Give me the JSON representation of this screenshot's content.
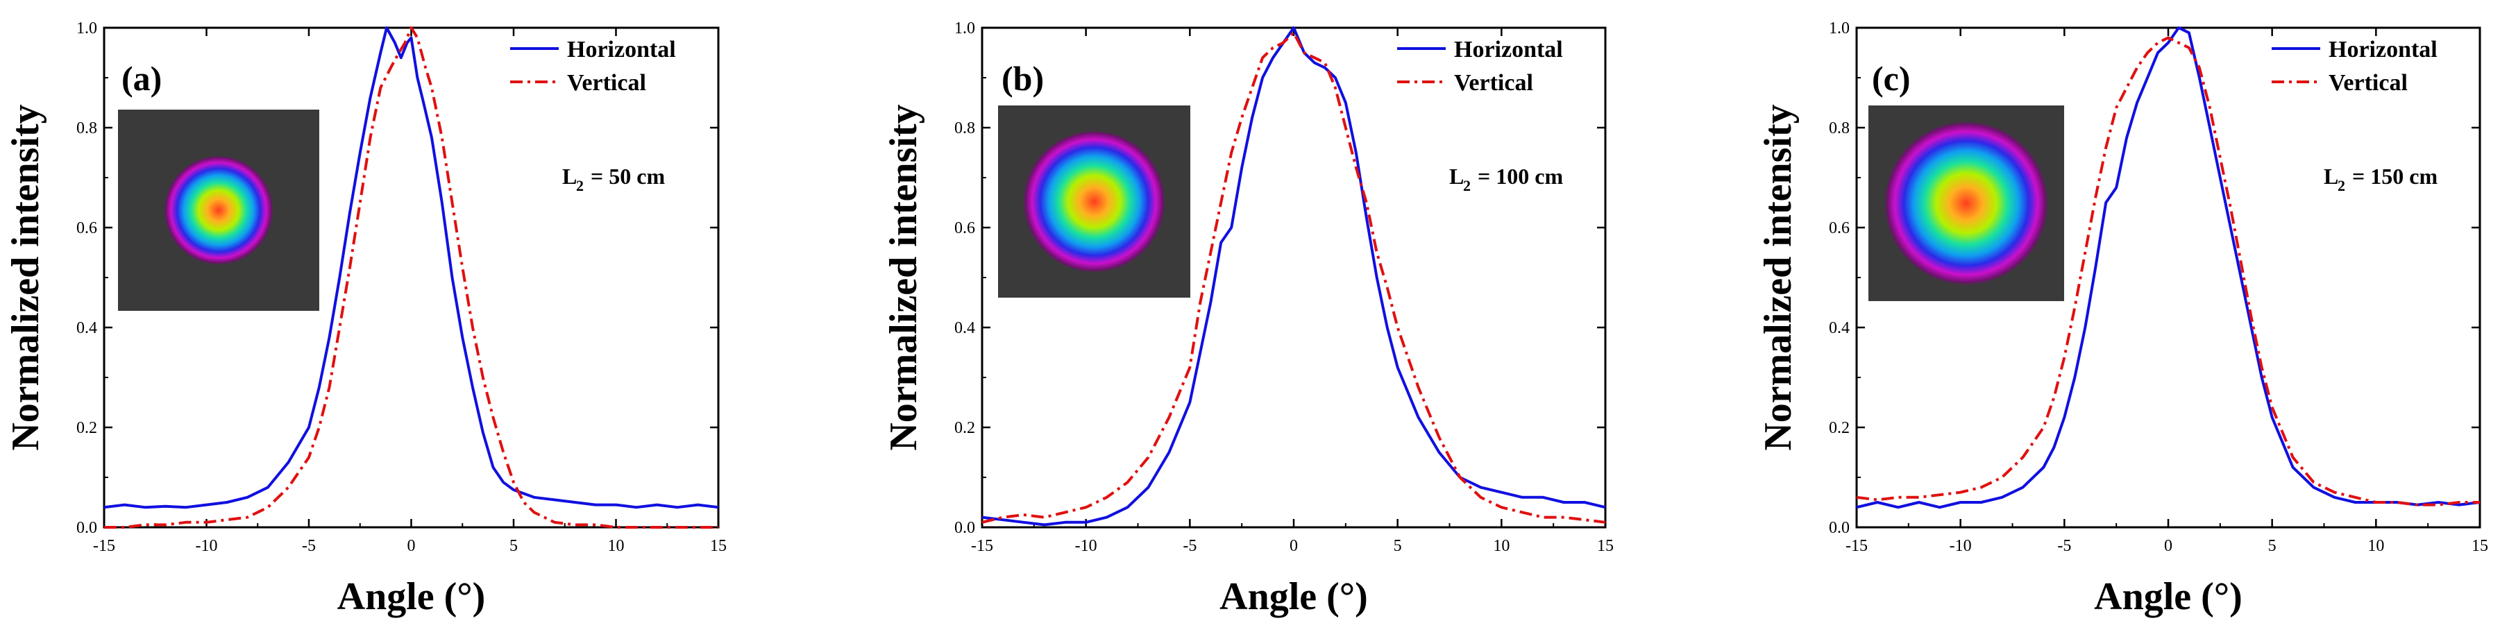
{
  "figure": {
    "panel_count": 3,
    "colors": {
      "horizontal": "#1010e0",
      "vertical": "#e01010",
      "axis": "#000000",
      "inset_background": "#3a3a3a"
    }
  },
  "chart_data": [
    {
      "type": "line",
      "panel_label": "(a)",
      "xlabel": "Angle (°)",
      "ylabel": "Normalized intensity",
      "xlim": [
        -15,
        15
      ],
      "ylim": [
        0,
        1.0
      ],
      "xticks": [
        -15,
        -10,
        -5,
        0,
        5,
        10,
        15
      ],
      "xtick_labels": [
        "-15",
        "-10",
        "-5",
        "0",
        "5",
        "10",
        "15"
      ],
      "yticks": [
        0,
        0.2,
        0.4,
        0.6,
        0.8,
        1.0
      ],
      "ytick_labels": [
        "0.0",
        "0.2",
        "0.4",
        "0.6",
        "0.8",
        "1.0"
      ],
      "legend_position": "top-right",
      "parameter_main": "L",
      "parameter_sub": "2",
      "parameter_value": " = 50 cm",
      "inset": {
        "spot_size": 0.55
      },
      "series": [
        {
          "name": "Horizontal",
          "style": "solid",
          "color": "#1010e0",
          "x": [
            -15,
            -14,
            -13,
            -12,
            -11,
            -10,
            -9,
            -8,
            -7,
            -6,
            -5,
            -4.5,
            -4,
            -3.5,
            -3,
            -2.5,
            -2,
            -1.5,
            -1.2,
            -0.8,
            -0.5,
            -0.2,
            0,
            0.3,
            0.6,
            1,
            1.5,
            2,
            2.5,
            3,
            3.5,
            4,
            4.5,
            5,
            6,
            7,
            8,
            9,
            10,
            11,
            12,
            13,
            14,
            15
          ],
          "y": [
            0.04,
            0.045,
            0.04,
            0.042,
            0.04,
            0.045,
            0.05,
            0.06,
            0.08,
            0.13,
            0.2,
            0.28,
            0.38,
            0.5,
            0.63,
            0.75,
            0.86,
            0.95,
            1.0,
            0.97,
            0.94,
            0.97,
            0.98,
            0.9,
            0.85,
            0.78,
            0.65,
            0.5,
            0.38,
            0.28,
            0.19,
            0.12,
            0.09,
            0.075,
            0.06,
            0.055,
            0.05,
            0.045,
            0.045,
            0.04,
            0.045,
            0.04,
            0.045,
            0.04
          ]
        },
        {
          "name": "Vertical",
          "style": "dashdot",
          "color": "#e01010",
          "x": [
            -15,
            -14,
            -13,
            -12,
            -11,
            -10,
            -9,
            -8,
            -7,
            -6,
            -5,
            -4.5,
            -4,
            -3.5,
            -3,
            -2.5,
            -2,
            -1.5,
            -1,
            -0.6,
            -0.3,
            0,
            0.3,
            0.7,
            1,
            1.5,
            2,
            2.5,
            3,
            3.5,
            4,
            4.5,
            5,
            5.5,
            6,
            7,
            8,
            9,
            10,
            11,
            12,
            13,
            14,
            15
          ],
          "y": [
            0.0,
            0.0,
            0.005,
            0.005,
            0.01,
            0.01,
            0.015,
            0.02,
            0.04,
            0.08,
            0.14,
            0.2,
            0.28,
            0.4,
            0.52,
            0.65,
            0.78,
            0.88,
            0.92,
            0.95,
            0.97,
            1.0,
            0.98,
            0.92,
            0.88,
            0.78,
            0.65,
            0.52,
            0.4,
            0.3,
            0.22,
            0.15,
            0.09,
            0.05,
            0.03,
            0.01,
            0.005,
            0.005,
            0.0,
            0.0,
            0.0,
            0.0,
            0.0,
            0.0
          ]
        }
      ]
    },
    {
      "type": "line",
      "panel_label": "(b)",
      "xlabel": "Angle (°)",
      "ylabel": "Normalized intensity",
      "xlim": [
        -15,
        15
      ],
      "ylim": [
        0,
        1.0
      ],
      "xticks": [
        -15,
        -10,
        -5,
        0,
        5,
        10,
        15
      ],
      "xtick_labels": [
        "-15",
        "-10",
        "-5",
        "0",
        "5",
        "10",
        "15"
      ],
      "yticks": [
        0,
        0.2,
        0.4,
        0.6,
        0.8,
        1.0
      ],
      "ytick_labels": [
        "0.0",
        "0.2",
        "0.4",
        "0.6",
        "0.8",
        "1.0"
      ],
      "legend_position": "top-right",
      "parameter_main": "L",
      "parameter_sub": "2",
      "parameter_value": " = 100 cm",
      "inset": {
        "spot_size": 0.75
      },
      "series": [
        {
          "name": "Horizontal",
          "style": "solid",
          "color": "#1010e0",
          "x": [
            -15,
            -14,
            -13,
            -12,
            -11,
            -10,
            -9,
            -8,
            -7,
            -6,
            -5,
            -4.5,
            -4,
            -3.5,
            -3,
            -2.5,
            -2,
            -1.5,
            -1,
            -0.5,
            0,
            0.5,
            1,
            1.5,
            2,
            2.5,
            3,
            3.5,
            4,
            4.5,
            5,
            6,
            7,
            8,
            9,
            10,
            11,
            12,
            13,
            14,
            15
          ],
          "y": [
            0.02,
            0.015,
            0.01,
            0.005,
            0.01,
            0.01,
            0.02,
            0.04,
            0.08,
            0.15,
            0.25,
            0.35,
            0.45,
            0.57,
            0.6,
            0.72,
            0.82,
            0.9,
            0.94,
            0.97,
            1.0,
            0.95,
            0.93,
            0.92,
            0.9,
            0.85,
            0.75,
            0.62,
            0.5,
            0.4,
            0.32,
            0.22,
            0.15,
            0.1,
            0.08,
            0.07,
            0.06,
            0.06,
            0.05,
            0.05,
            0.04
          ]
        },
        {
          "name": "Vertical",
          "style": "dashdot",
          "color": "#e01010",
          "x": [
            -15,
            -14,
            -13,
            -12,
            -11,
            -10,
            -9,
            -8,
            -7,
            -6,
            -5,
            -4.5,
            -4,
            -3.5,
            -3,
            -2.5,
            -2,
            -1.5,
            -1,
            -0.5,
            0,
            0.5,
            1,
            1.5,
            2,
            2.5,
            3,
            3.5,
            4,
            4.5,
            5,
            6,
            7,
            8,
            9,
            10,
            11,
            12,
            13,
            14,
            15
          ],
          "y": [
            0.01,
            0.02,
            0.025,
            0.02,
            0.03,
            0.04,
            0.06,
            0.09,
            0.14,
            0.22,
            0.32,
            0.45,
            0.55,
            0.65,
            0.75,
            0.82,
            0.88,
            0.94,
            0.96,
            0.97,
            0.99,
            0.95,
            0.94,
            0.93,
            0.88,
            0.8,
            0.72,
            0.65,
            0.55,
            0.48,
            0.4,
            0.28,
            0.18,
            0.1,
            0.06,
            0.04,
            0.03,
            0.02,
            0.02,
            0.015,
            0.01
          ]
        }
      ]
    },
    {
      "type": "line",
      "panel_label": "(c)",
      "xlabel": "Angle (°)",
      "ylabel": "Normalized intensity",
      "xlim": [
        -15,
        15
      ],
      "ylim": [
        0,
        1.0
      ],
      "xticks": [
        -15,
        -10,
        -5,
        0,
        5,
        10,
        15
      ],
      "xtick_labels": [
        "-15",
        "-10",
        "-5",
        "0",
        "5",
        "10",
        "15"
      ],
      "yticks": [
        0,
        0.2,
        0.4,
        0.6,
        0.8,
        1.0
      ],
      "ytick_labels": [
        "0.0",
        "0.2",
        "0.4",
        "0.6",
        "0.8",
        "1.0"
      ],
      "legend_position": "top-right",
      "parameter_main": "L",
      "parameter_sub": "2",
      "parameter_value": " = 150 cm",
      "inset": {
        "spot_size": 0.85
      },
      "series": [
        {
          "name": "Horizontal",
          "style": "solid",
          "color": "#1010e0",
          "x": [
            -15,
            -14,
            -13,
            -12,
            -11,
            -10,
            -9,
            -8,
            -7,
            -6,
            -5.5,
            -5,
            -4.5,
            -4,
            -3.5,
            -3,
            -2.5,
            -2,
            -1.5,
            -1,
            -0.5,
            0,
            0.5,
            1,
            1.5,
            2,
            2.5,
            3,
            3.5,
            4,
            4.5,
            5,
            6,
            7,
            8,
            9,
            10,
            11,
            12,
            13,
            14,
            15
          ],
          "y": [
            0.04,
            0.05,
            0.04,
            0.05,
            0.04,
            0.05,
            0.05,
            0.06,
            0.08,
            0.12,
            0.16,
            0.22,
            0.3,
            0.4,
            0.52,
            0.65,
            0.68,
            0.78,
            0.85,
            0.9,
            0.95,
            0.97,
            1.0,
            0.99,
            0.9,
            0.8,
            0.7,
            0.6,
            0.5,
            0.4,
            0.3,
            0.22,
            0.12,
            0.08,
            0.06,
            0.05,
            0.05,
            0.05,
            0.045,
            0.05,
            0.045,
            0.05
          ]
        },
        {
          "name": "Vertical",
          "style": "dashdot",
          "color": "#e01010",
          "x": [
            -15,
            -14,
            -13,
            -12,
            -11,
            -10,
            -9,
            -8,
            -7,
            -6,
            -5.5,
            -5,
            -4.5,
            -4,
            -3.5,
            -3,
            -2.5,
            -2,
            -1.5,
            -1,
            -0.5,
            0,
            0.5,
            1,
            1.5,
            2,
            2.5,
            3,
            3.5,
            4,
            4.5,
            5,
            6,
            7,
            8,
            9,
            10,
            11,
            12,
            13,
            14,
            15
          ],
          "y": [
            0.06,
            0.055,
            0.06,
            0.06,
            0.065,
            0.07,
            0.08,
            0.1,
            0.14,
            0.2,
            0.26,
            0.34,
            0.44,
            0.55,
            0.66,
            0.76,
            0.84,
            0.88,
            0.92,
            0.95,
            0.97,
            0.98,
            0.97,
            0.96,
            0.92,
            0.84,
            0.74,
            0.64,
            0.53,
            0.42,
            0.32,
            0.24,
            0.14,
            0.09,
            0.07,
            0.06,
            0.05,
            0.05,
            0.045,
            0.045,
            0.05,
            0.05
          ]
        }
      ]
    }
  ]
}
